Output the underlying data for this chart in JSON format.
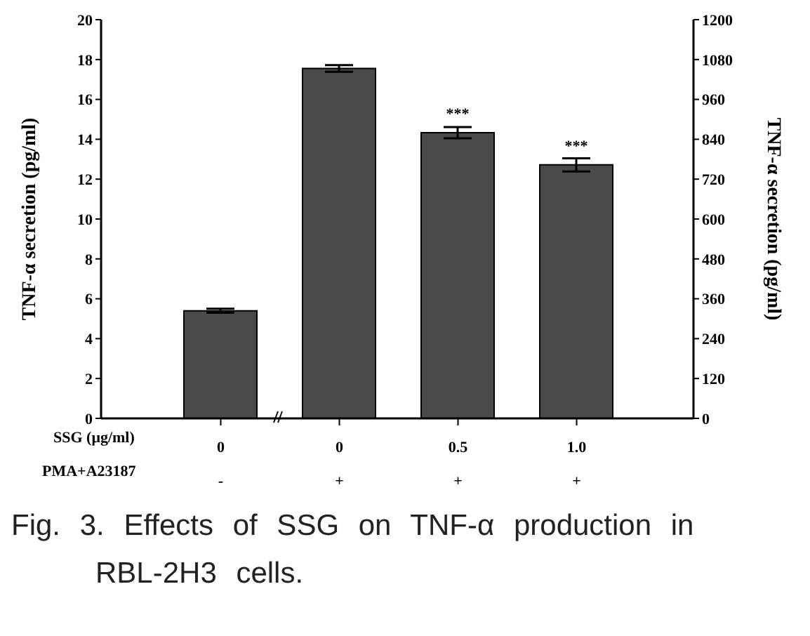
{
  "chart_data": {
    "type": "bar",
    "title": "Fig. 3. Effects of SSG on TNF-α production in RBL-2H3 cells.",
    "categories": [
      "0",
      "0",
      "0.5",
      "1.0"
    ],
    "xlabel": "SSG (μg/ml)",
    "ylabel": "TNF-α secretion (pg/ml)",
    "y2label": "TNF-α secretion (pg/ml)",
    "series": [
      {
        "color": "#4a4a4a",
        "values": [
          5.4,
          null,
          null,
          null
        ],
        "errors": [
          0.1,
          null,
          null,
          null
        ]
      },
      {
        "color": "#4a4a4a",
        "axis": "y2",
        "values": [
          null,
          1053,
          860,
          763
        ],
        "errors": [
          null,
          10,
          17,
          20
        ],
        "value_labels": [
          null,
          null,
          "***",
          "***"
        ]
      }
    ],
    "ylim": [
      0,
      20
    ],
    "yticks": [
      0,
      2,
      4,
      6,
      8,
      10,
      12,
      14,
      16,
      18,
      20
    ],
    "y2lim": [
      0,
      1200
    ],
    "y2ticks": [
      0,
      120,
      240,
      360,
      480,
      600,
      720,
      840,
      960,
      1080,
      1200
    ],
    "annotations": [
      "PMA+A23187",
      "-",
      "+",
      "+",
      "+"
    ],
    "grid": false
  }
}
